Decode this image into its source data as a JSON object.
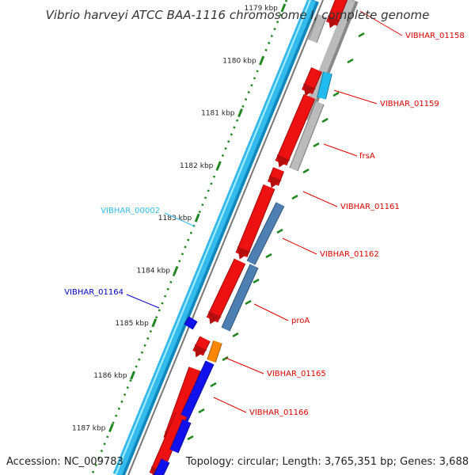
{
  "title": "Vibrio harveyi ATCC BAA-1116 chromosome I, complete genome",
  "accession": "Accession: NC_009783",
  "summary": "Topology: circular; Length: 3,765,351 bp; Genes: 3,688",
  "colors": {
    "plus_track": "#33bbee",
    "minus_track": "#bbbbbb",
    "cds_red": "#ee1111",
    "cds_blue": "#1111ee",
    "cds_steel": "#4d7fb3",
    "cds_orange": "#ff8800",
    "cds_cyan": "#22bbee",
    "tick_green": "#228822"
  },
  "ticks": [
    {
      "label": "1179 kbp"
    },
    {
      "label": "1180 kbp"
    },
    {
      "label": "1181 kbp"
    },
    {
      "label": "1182 kbp"
    },
    {
      "label": "1183 kbp"
    },
    {
      "label": "1184 kbp"
    },
    {
      "label": "1185 kbp"
    },
    {
      "label": "1186 kbp"
    },
    {
      "label": "1187 kbp"
    }
  ],
  "labels": [
    {
      "text": "VIBHAR_01158",
      "color": "#dd0000"
    },
    {
      "text": "VIBHAR_01159",
      "color": "#dd0000"
    },
    {
      "text": "frsA",
      "color": "#dd0000"
    },
    {
      "text": "VIBHAR_01161",
      "color": "#dd0000"
    },
    {
      "text": "VIBHAR_01162",
      "color": "#dd0000"
    },
    {
      "text": "proA",
      "color": "#dd0000"
    },
    {
      "text": "VIBHAR_01165",
      "color": "#dd0000"
    },
    {
      "text": "VIBHAR_01166",
      "color": "#dd0000"
    },
    {
      "text": "VIBHAR_00002",
      "color": "#33bbee"
    },
    {
      "text": "VIBHAR_01164",
      "color": "#0000cc"
    }
  ]
}
